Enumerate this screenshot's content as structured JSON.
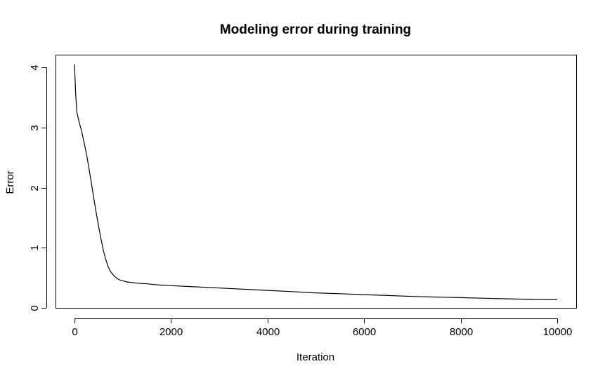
{
  "chart_data": {
    "type": "line",
    "title": "Modeling error during training",
    "xlabel": "Iteration",
    "ylabel": "Error",
    "xlim": [
      0,
      10000
    ],
    "ylim": [
      0,
      4
    ],
    "xticks": [
      0,
      2000,
      4000,
      6000,
      8000,
      10000
    ],
    "yticks": [
      0,
      1,
      2,
      3,
      4
    ],
    "grid": false,
    "legend": "none",
    "series": [
      {
        "color": "#000000",
        "x": [
          0,
          25,
          50,
          100,
          150,
          200,
          250,
          300,
          350,
          400,
          450,
          500,
          550,
          600,
          650,
          700,
          750,
          800,
          850,
          900,
          950,
          1000,
          1100,
          1200,
          1300,
          1500,
          1750,
          2000,
          2500,
          3000,
          3500,
          4000,
          4500,
          5000,
          5500,
          6000,
          6500,
          7000,
          7500,
          8000,
          8500,
          9000,
          9500,
          10000
        ],
        "y": [
          4.05,
          3.55,
          3.25,
          3.08,
          2.93,
          2.75,
          2.55,
          2.32,
          2.08,
          1.82,
          1.58,
          1.36,
          1.14,
          0.95,
          0.8,
          0.68,
          0.6,
          0.55,
          0.51,
          0.48,
          0.46,
          0.45,
          0.43,
          0.42,
          0.41,
          0.4,
          0.38,
          0.37,
          0.35,
          0.33,
          0.31,
          0.29,
          0.27,
          0.25,
          0.235,
          0.22,
          0.205,
          0.19,
          0.18,
          0.17,
          0.16,
          0.15,
          0.14,
          0.135
        ]
      }
    ]
  }
}
